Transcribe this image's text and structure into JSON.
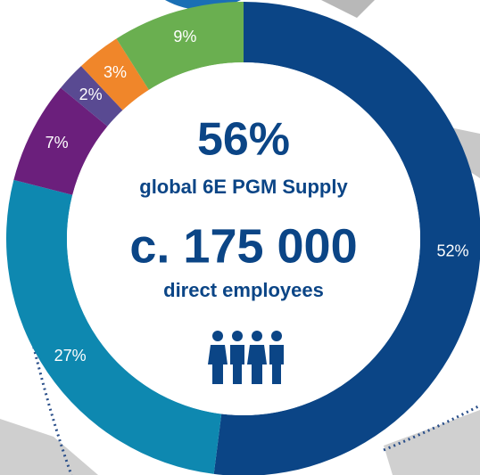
{
  "chart_data": {
    "type": "donut",
    "values": [
      52,
      27,
      7,
      2,
      3,
      9
    ],
    "value_labels": [
      "52%",
      "27%",
      "7%",
      "2%",
      "3%",
      "9%"
    ],
    "colors": [
      "#0b4586",
      "#0e88b0",
      "#6b1f7c",
      "#594a92",
      "#f0862a",
      "#6aaf50"
    ],
    "center_texts": [
      "56%",
      "global 6E PGM Supply",
      "c. 175 000",
      "direct employees"
    ]
  }
}
